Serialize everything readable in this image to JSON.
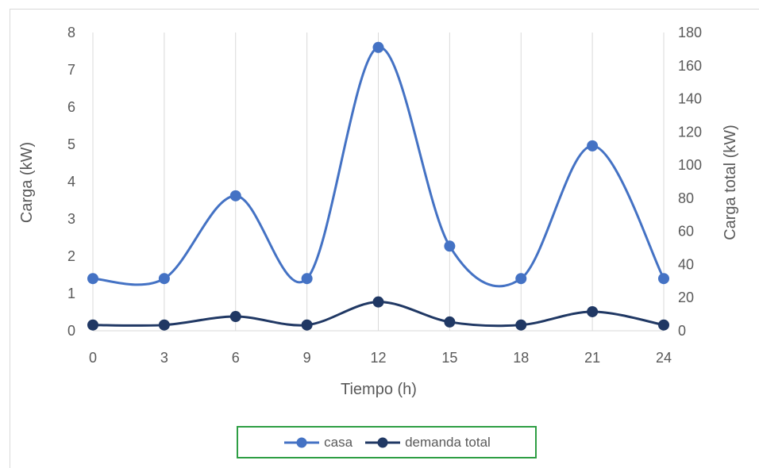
{
  "chart_data": {
    "type": "line",
    "smooth": true,
    "x": [
      0,
      3,
      6,
      9,
      12,
      15,
      18,
      21,
      24
    ],
    "xlabel": "Tiempo (h)",
    "xlim": [
      0,
      24
    ],
    "xticks": [
      "0",
      "3",
      "6",
      "9",
      "12",
      "15",
      "18",
      "21",
      "24"
    ],
    "ylabel": "Carga (kW)",
    "ylim": [
      0,
      8
    ],
    "yticks": [
      "0",
      "1",
      "2",
      "3",
      "4",
      "5",
      "6",
      "7",
      "8"
    ],
    "y2label": "Carga  total (kW)",
    "y2lim": [
      0,
      180
    ],
    "y2ticks": [
      "0",
      "20",
      "40",
      "60",
      "80",
      "100",
      "120",
      "140",
      "160",
      "180"
    ],
    "grid": "vertical",
    "legend_position": "bottom",
    "series": [
      {
        "name": "casa",
        "axis": "left",
        "color": "#4472c4",
        "values": [
          1.4,
          1.4,
          3.62,
          1.4,
          7.6,
          2.27,
          1.4,
          4.96,
          1.4
        ]
      },
      {
        "name": "demanda total",
        "axis": "right",
        "color": "#203864",
        "values": [
          3.5,
          3.5,
          8.6,
          3.5,
          17.4,
          5.3,
          3.5,
          11.5,
          3.5
        ]
      }
    ]
  }
}
